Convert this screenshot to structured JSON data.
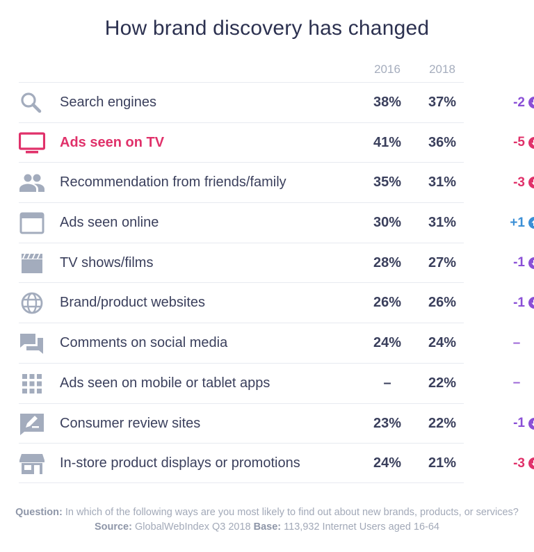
{
  "title": "How brand discovery has changed",
  "columns": {
    "y2016": "2016",
    "y2018": "2018"
  },
  "colors": {
    "icon": "#a3acbd",
    "highlight": "#e0316a",
    "decrease_purple": "#8a4fd6",
    "decrease_pink": "#e0316a",
    "increase_blue": "#3b8fd6",
    "neutral": "#9a63d6"
  },
  "chart_data": {
    "type": "table",
    "title": "How brand discovery has changed",
    "columns": [
      "2016",
      "2018"
    ],
    "rows": [
      {
        "icon": "search-icon",
        "label": "Search engines",
        "v2016": "38%",
        "v2018": "37%",
        "change": "-2",
        "trend": "down",
        "color": "#8a4fd6"
      },
      {
        "icon": "tv-icon",
        "label": "Ads seen on TV",
        "v2016": "41%",
        "v2018": "36%",
        "change": "-5",
        "trend": "down",
        "color": "#e0316a",
        "highlight": true
      },
      {
        "icon": "people-icon",
        "label": "Recommendation from friends/family",
        "v2016": "35%",
        "v2018": "31%",
        "change": "-3",
        "trend": "down",
        "color": "#e0316a"
      },
      {
        "icon": "browser-window-icon",
        "label": "Ads seen online",
        "v2016": "30%",
        "v2018": "31%",
        "change": "+1",
        "trend": "up",
        "color": "#3b8fd6"
      },
      {
        "icon": "clapperboard-icon",
        "label": "TV shows/films",
        "v2016": "28%",
        "v2018": "27%",
        "change": "-1",
        "trend": "down",
        "color": "#8a4fd6"
      },
      {
        "icon": "globe-icon",
        "label": "Brand/product websites",
        "v2016": "26%",
        "v2018": "26%",
        "change": "-1",
        "trend": "down",
        "color": "#8a4fd6"
      },
      {
        "icon": "chat-bubbles-icon",
        "label": "Comments on social media",
        "v2016": "24%",
        "v2018": "24%",
        "change": "–",
        "trend": "none",
        "color": "#9a63d6"
      },
      {
        "icon": "app-grid-icon",
        "label": "Ads seen on mobile or tablet apps",
        "v2016": "–",
        "v2018": "22%",
        "change": "–",
        "trend": "none",
        "color": "#9a63d6"
      },
      {
        "icon": "review-icon",
        "label": "Consumer review sites",
        "v2016": "23%",
        "v2018": "22%",
        "change": "-1",
        "trend": "down",
        "color": "#8a4fd6"
      },
      {
        "icon": "store-icon",
        "label": "In-store product displays or promotions",
        "v2016": "24%",
        "v2018": "21%",
        "change": "-3",
        "trend": "down",
        "color": "#e0316a"
      }
    ]
  },
  "footnote": {
    "question_label": "Question:",
    "question_text": "In which of the following ways are you most likely to find out about new brands, products, or services?",
    "source_label": "Source:",
    "source_text": "GlobalWebIndex Q3 2018",
    "base_label": "Base:",
    "base_text": "113,932 Internet Users aged 16-64"
  }
}
